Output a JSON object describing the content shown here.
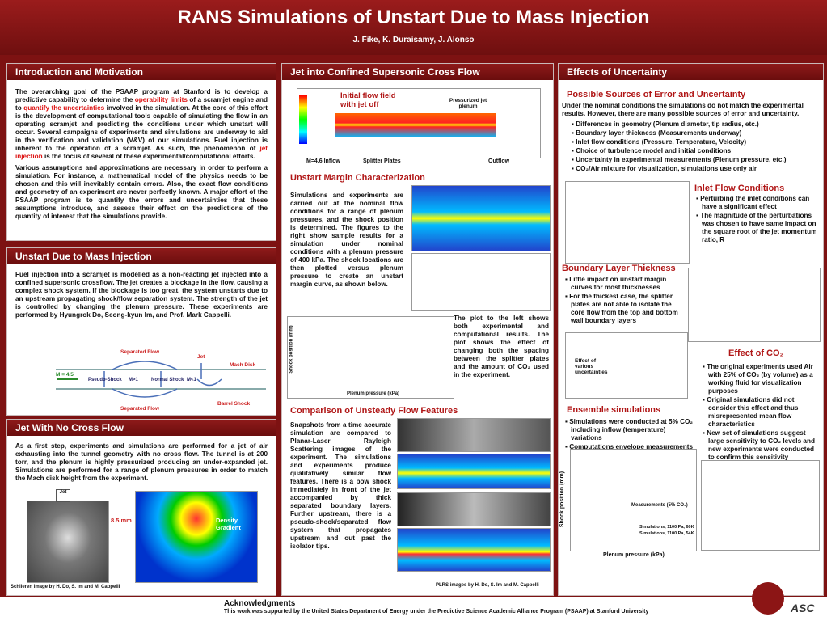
{
  "header": {
    "title": "RANS Simulations of Unstart Due to Mass Injection",
    "authors": "J. Fike, K. Duraisamy, J. Alonso"
  },
  "intro": {
    "heading": "Introduction and Motivation",
    "p1": [
      "The overarching goal of the PSAAP program at Stanford is to develop a predictive capability to determine the ",
      "operability limits",
      " of a scramjet engine and to ",
      "quantify the uncertainties",
      " involved in the simulation.  At the core of this effort is the development of computational tools capable of simulating the flow in an operating scramjet and predicting the conditions under which unstart will occur. Several campaigns of experiments and simulations are underway to aid in the verification and validation (V&V) of our simulations.  Fuel injection is inherent to the operation of a scramjet.  As such, the phenomenon of ",
      "jet injection",
      " is the focus of several of these experimental/computational efforts."
    ],
    "p2": "Various assumptions and approximations are necessary in order to perform a simulation.  For instance, a mathematical model of the physics needs to be chosen and this will inevitably contain errors.  Also, the exact flow conditions and geometry of an experiment are never perfectly known.  A major effort of the PSAAP program is to quantify the errors and uncertainties that these assumptions introduce, and assess their effect on the predictions of the quantity of interest that the simulations provide."
  },
  "unstart": {
    "heading": "Unstart Due to Mass Injection",
    "text": "Fuel injection into a scramjet is modelled as a non-reacting jet injected into a confined supersonic crossflow.  The jet creates a blockage in the flow, causing a complex shock system.  If the blockage is too great, the system unstarts due to an upstream propagating shock/flow separation system.  The strength of the jet is controlled by changing the plenum pressure.  These experiments are performed by Hyungrok Do, Seong-kyun Im, and Prof. Mark Cappelli.",
    "labels": [
      "Separated Flow",
      "Jet",
      "Mach Disk",
      "M = 4.5",
      "Pseudo-Shock",
      "M>1",
      "Normal Shock",
      "M<1",
      "Separated Flow",
      "Barrel Shock"
    ]
  },
  "nocross": {
    "heading": "Jet With No Cross Flow",
    "text": "As a first step, experiments and simulations are performed for a jet of air exhausting into the tunnel geometry with no cross flow.  The tunnel is at 200 torr, and the plenum is highly pressurized producing an under-expanded jet.   Simulations are performed for a range of plenum pressures in order to match the Mach disk height from the experiment.",
    "jet": "Jet",
    "size": "8.5 mm",
    "density": "Density Gradient",
    "caption": "Schlieren image by H. Do, S. Im and M. Cappelli"
  },
  "confined": {
    "heading": "Jet into Confined Supersonic Cross Flow",
    "initial": "Initial flow field with jet off",
    "plenum": "Pressurized jet plenum",
    "inflow": "M=4.6 Inflow",
    "splitter": "Splitter Plates",
    "outflow": "Outflow"
  },
  "margin": {
    "heading": "Unstart Margin Characterization",
    "text": "Simulations and experiments are carried out at the nominal flow conditions for a range of plenum pressures, and the shock position is determined.  The figures to the right show sample results for a simulation under nominal conditions with a plenum pressure of 400 kPa.  The shock locations are then plotted versus plenum pressure to create an unstart margin curve, as shown below.",
    "text2": "The plot to the left shows both experimental and computational results.  The plot shows the effect of changing both the spacing between the splitter plates and the amount of CO₂ used in the experiment.",
    "ylabel": "Shock position (mm)",
    "xlabel": "Plenum pressure (kPa)"
  },
  "unsteady": {
    "heading": "Comparison of Unsteady Flow Features",
    "text": "Snapshots from a time accurate simulation are compared to Planar-Laser Rayleigh Scattering images of the experiment.  The simulations and experiments produce qualitatively similar flow features.  There is a bow shock immediately in front of the jet accompanied by thick separated boundary layers.  Further upstream, there is a pseudo-shock/separated flow system that propagates upstream and out past the isolator tips.",
    "caption": "PLRS images by H. Do, S. Im and M. Cappelli"
  },
  "uncertainty": {
    "heading": "Effects of Uncertainty",
    "sources": "Possible Sources of Error and Uncertainty",
    "intro": "Under the nominal conditions the simulations do not match the experimental results. However, there are many possible sources of error and uncertainty.",
    "bullets": [
      "Differences in geometry (Plenum diameter, tip radius, etc.)",
      "Boundary layer thickness (Measurements underway)",
      "Inlet flow conditions (Pressure, Temperature, Velocity)",
      "Choice of turbulence model and initial conditions",
      "Uncertainty in experimental measurements (Plenum pressure, etc.)",
      "CO₂/Air mixture for visualization, simulations use only air"
    ],
    "inlet": "Inlet Flow Conditions",
    "inlet_bullets": [
      "Perturbing the inlet conditions can have a significant effect",
      "The magnitude of the perturbations was chosen to have same impact on the square root of the jet momentum ratio, R"
    ],
    "bl": "Boundary Layer Thickness",
    "bl_bullets": [
      "Little impact on unstart margin curves for most thicknesses",
      "For the thickest case, the splitter plates are not able to isolate the core flow from the top and bottom wall boundary layers"
    ],
    "effect": "Effect of various uncertainties",
    "co2": "Effect of CO₂",
    "co2_bullets": [
      "The original experiments used Air with 25% of CO₂ (by volume) as a working fluid for visualization purposes",
      "Original simulations did not consider this effect and thus misrepresented mean flow characteristics",
      "New set of simulations suggest large sensitivity to CO₂ levels and new experiments were conducted to confirm this sensitivity"
    ],
    "ensemble": "Ensemble simulations",
    "ens_bullets": [
      "Simulations were conducted at 5% CO₂ including inflow (temperature) variations",
      "Computations envelope measurements"
    ],
    "ens_ylabel": "Shock position (mm)",
    "ens_xlabel": "Plenum pressure (kPa)",
    "measurements": "Measurements (5% CO₂)",
    "leg1": "Simulations, 1100 Pa, 60K",
    "leg2": "Simulations, 1100 Pa, 54K"
  },
  "ack": {
    "heading": "Acknowledgments",
    "text": "This work was supported by the United States Department of Energy under the Predictive Science Academic Alliance Program (PSAAP) at Stanford University",
    "logo": "ASC"
  }
}
